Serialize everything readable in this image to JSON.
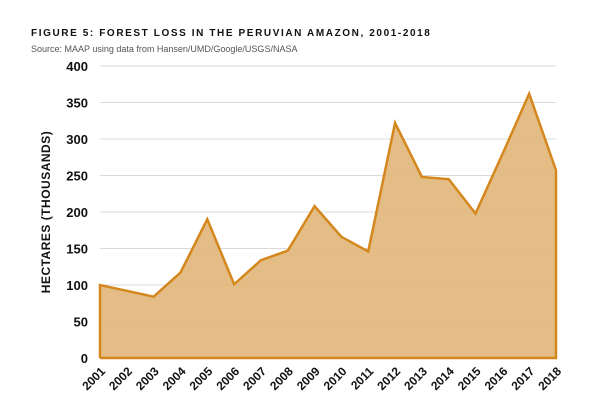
{
  "chart_data": {
    "type": "area",
    "title": "FIGURE 5: FOREST LOSS IN THE PERUVIAN AMAZON, 2001-2018",
    "subtitle": "Source: MAAP using data from Hansen/UMD/Google/USGS/NASA",
    "xlabel": "",
    "ylabel": "HECTARES (THOUSANDS)",
    "categories": [
      "2001",
      "2002",
      "2003",
      "2004",
      "2005",
      "2006",
      "2007",
      "2008",
      "2009",
      "2010",
      "2011",
      "2012",
      "2013",
      "2014",
      "2015",
      "2016",
      "2017",
      "2018"
    ],
    "values": [
      100,
      92,
      84,
      117,
      190,
      101,
      134,
      147,
      208,
      166,
      146,
      322,
      248,
      245,
      198,
      279,
      362,
      257
    ],
    "ylim": [
      0,
      400
    ],
    "yticks": [
      0,
      50,
      100,
      150,
      200,
      250,
      300,
      350,
      400
    ],
    "grid": true,
    "legend": "none",
    "colors": {
      "fill": "#e3b97f",
      "line": "#d4871c",
      "grid": "#d9d9d9"
    }
  }
}
